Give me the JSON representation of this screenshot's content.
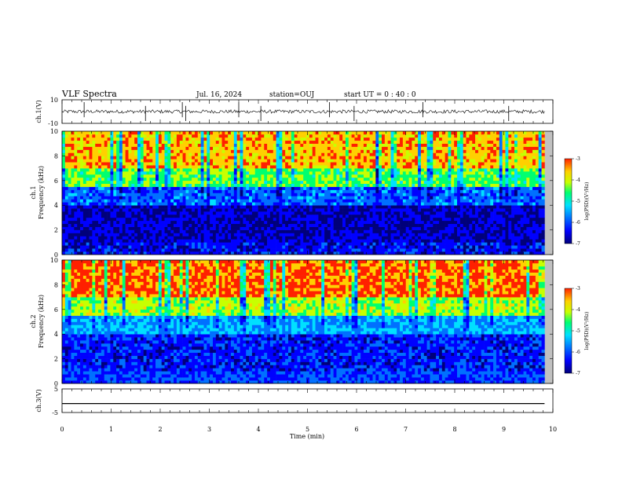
{
  "header": {
    "title": "VLF Spectra",
    "date": "Jul. 16, 2024",
    "station": "station=OUJ",
    "start": "start UT =  0 : 40 : 0"
  },
  "chart_data": [
    {
      "type": "line",
      "panel": "ch1-waveform",
      "ylabel": "ch.1(V)",
      "ylim": [
        -10,
        10
      ],
      "yticks": [
        "10",
        "-10"
      ],
      "x_range_min": [
        0,
        9.83
      ],
      "description_values": {
        "baseline_V": 0,
        "typical_amplitude_V": 1.5,
        "spike_amplitude_V": 8
      }
    },
    {
      "type": "heatmap",
      "panel": "ch1-spectrogram",
      "ylabel_line1": "ch.1",
      "ylabel_line2": "Frequency (kHz)",
      "ylim": [
        0,
        10
      ],
      "yticks": [
        "0",
        "2",
        "4",
        "6",
        "8",
        "10"
      ],
      "xlim": [
        0,
        9.83
      ],
      "colorbar": {
        "label": "log(PSD)(V²/Hz)",
        "range": [
          -7,
          -3
        ],
        "ticks": [
          "-3",
          "-4",
          "-5",
          "-6",
          "-7"
        ]
      },
      "band_levels": [
        {
          "freq_from": 0,
          "freq_to": 1,
          "log_psd": -6.3
        },
        {
          "freq_from": 1,
          "freq_to": 4,
          "log_psd": -6.5
        },
        {
          "freq_from": 4,
          "freq_to": 5.5,
          "log_psd": -5.8
        },
        {
          "freq_from": 5.5,
          "freq_to": 7,
          "log_psd": -4.6
        },
        {
          "freq_from": 7,
          "freq_to": 10,
          "log_psd": -3.7
        }
      ]
    },
    {
      "type": "heatmap",
      "panel": "ch2-spectrogram",
      "ylabel_line1": "ch.2",
      "ylabel_line2": "Frequency (kHz)",
      "ylim": [
        0,
        10
      ],
      "yticks": [
        "0",
        "2",
        "4",
        "6",
        "8",
        "10"
      ],
      "xlim": [
        0,
        9.83
      ],
      "colorbar": {
        "label": "log(PSD)(V²/Hz)",
        "range": [
          -7,
          -3
        ],
        "ticks": [
          "-3",
          "-4",
          "-5",
          "-6",
          "-7"
        ]
      },
      "band_levels": [
        {
          "freq_from": 0,
          "freq_to": 1,
          "log_psd": -6.0
        },
        {
          "freq_from": 1,
          "freq_to": 4,
          "log_psd": -6.2
        },
        {
          "freq_from": 4,
          "freq_to": 5.5,
          "log_psd": -5.5
        },
        {
          "freq_from": 5.5,
          "freq_to": 7,
          "log_psd": -4.3
        },
        {
          "freq_from": 7,
          "freq_to": 10,
          "log_psd": -3.4
        }
      ]
    },
    {
      "type": "line",
      "panel": "ch3-waveform",
      "ylabel": "ch.3(V)",
      "ylim": [
        -5,
        5
      ],
      "yticks": [
        "5",
        "-5"
      ],
      "x": [
        0,
        9.83
      ],
      "y": [
        -1.2,
        -1.2
      ]
    }
  ],
  "xaxis": {
    "label": "Time (min)",
    "range": [
      0,
      10
    ],
    "ticks": [
      "0",
      "1",
      "2",
      "3",
      "4",
      "5",
      "6",
      "7",
      "8",
      "9",
      "10"
    ]
  },
  "colors": {
    "scale": [
      "#00007a",
      "#0000ff",
      "#0070ff",
      "#00e0ff",
      "#00ff70",
      "#c8ff00",
      "#ffd000",
      "#ff2000"
    ],
    "gray_fill": "#c0c0c0",
    "line": "#000000"
  }
}
